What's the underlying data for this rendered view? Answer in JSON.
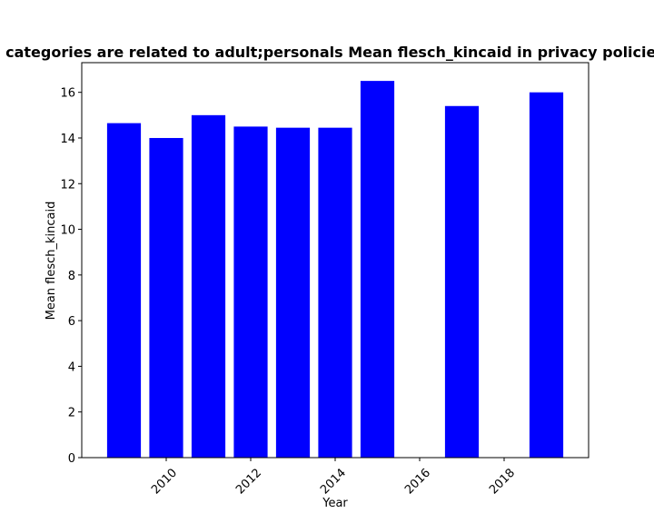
{
  "chart_data": {
    "type": "bar",
    "title": "categories are related to adult;personals Mean flesch_kincaid in privacy policies",
    "xlabel": "Year",
    "ylabel": "Mean flesch_kincaid",
    "x": [
      2009,
      2010,
      2011,
      2012,
      2013,
      2014,
      2015,
      2017,
      2019
    ],
    "values": [
      14.65,
      14.0,
      15.0,
      14.5,
      14.45,
      14.45,
      16.5,
      15.4,
      16.0
    ],
    "xlim": [
      2008,
      2020
    ],
    "ylim": [
      0,
      17.3
    ],
    "xticks": [
      2010,
      2012,
      2014,
      2016,
      2018
    ],
    "yticks": [
      0,
      2,
      4,
      6,
      8,
      10,
      12,
      14,
      16
    ],
    "bar_color": "#0000ff",
    "grid": false,
    "xtick_rotation": 45
  }
}
